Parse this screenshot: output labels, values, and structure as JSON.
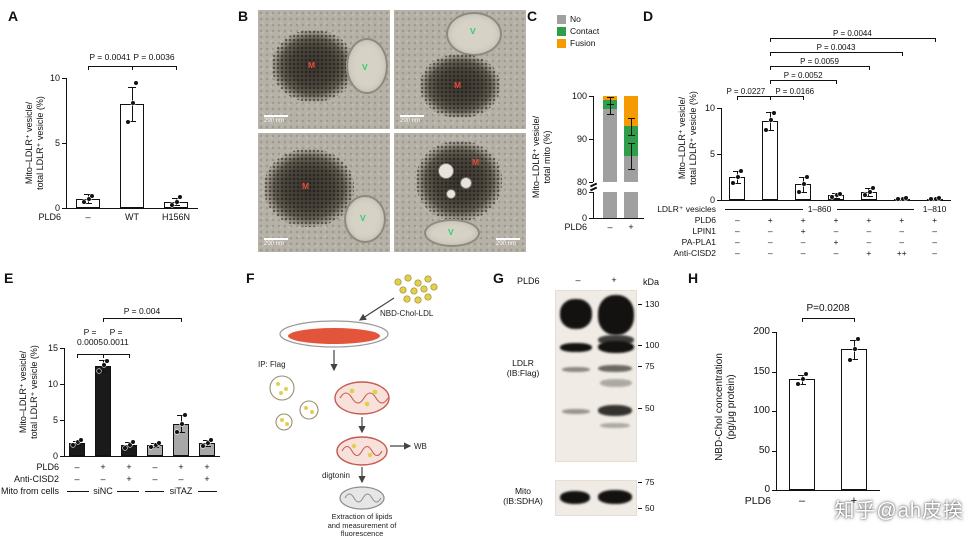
{
  "figure": {
    "watermark": "知乎@ah皮挨",
    "panels": {
      "A": {
        "label": "A",
        "chart_data": {
          "type": "bar",
          "ylabel_lines": [
            "Mito–LDLR⁺ vesicle/",
            "total LDLR⁺ vesicle (%)"
          ],
          "ylim": [
            0,
            10
          ],
          "yticks": [
            0,
            5,
            10
          ],
          "x_rows": [
            {
              "label": "PLD6",
              "cells": [
                "–",
                "WT",
                "H156N"
              ]
            }
          ],
          "values": [
            0.7,
            8.0,
            0.5
          ],
          "errors": [
            0.35,
            1.3,
            0.3
          ],
          "points": [
            [
              0.45,
              0.7,
              0.95
            ],
            [
              6.6,
              8.1,
              9.6
            ],
            [
              0.2,
              0.5,
              0.85
            ]
          ],
          "bar_colors": [
            "#ffffff",
            "#ffffff",
            "#ffffff"
          ],
          "brackets": [
            {
              "from": 0,
              "to": 1,
              "label": "P = 0.0041"
            },
            {
              "from": 1,
              "to": 2,
              "label": "P = 0.0036"
            }
          ]
        }
      },
      "B": {
        "label": "B",
        "tiles": [
          {
            "m": "M",
            "v": "V",
            "scale": "200 nm"
          },
          {
            "m": "M",
            "v": "V",
            "scale": "200 nm"
          },
          {
            "m": "M",
            "v": "V",
            "scale": "200 nm"
          },
          {
            "m": "M",
            "v": "V",
            "scale": "200 nm"
          }
        ]
      },
      "C": {
        "label": "C",
        "chart_data": {
          "type": "stacked-bar",
          "legend": [
            {
              "label": "No",
              "color": "#a0a0a0"
            },
            {
              "label": "Contact",
              "color": "#2f9e4a"
            },
            {
              "label": "Fusion",
              "color": "#f59b00"
            }
          ],
          "ylabel_lines": [
            "Mito–LDLR⁺ vesicle/",
            "total mito (%)"
          ],
          "x_label": "PLD6",
          "categories": [
            "–",
            "+"
          ],
          "axis_break": true,
          "yticks_top": [
            100,
            90,
            80
          ],
          "yticks_bottom": [
            80,
            0
          ],
          "stacks": {
            "order_top_down": [
              "Fusion",
              "Contact",
              "No"
            ],
            "Fusion": [
              1,
              7
            ],
            "Contact": [
              2,
              7
            ],
            "No": [
              97,
              86
            ]
          },
          "errors": [
            {
              "bar": 0,
              "value": 99,
              "err": 0.8
            },
            {
              "bar": 0,
              "value": 97,
              "err": 1.2
            },
            {
              "bar": 1,
              "value": 93,
              "err": 2
            },
            {
              "bar": 1,
              "value": 86,
              "err": 3
            }
          ]
        }
      },
      "D": {
        "label": "D",
        "chart_data": {
          "type": "bar",
          "ylabel_lines": [
            "Mito–LDLR⁺ vesicle/",
            "total LDLR⁺ vesicle (%)"
          ],
          "ylim": [
            0,
            10
          ],
          "yticks": [
            0,
            5,
            10
          ],
          "values": [
            2.5,
            8.6,
            1.7,
            0.5,
            0.9,
            0.15,
            0.15
          ],
          "errors": [
            0.7,
            1.0,
            0.8,
            0.25,
            0.45,
            0.1,
            0.1
          ],
          "points": [
            [
              1.8,
              2.5,
              3.2
            ],
            [
              7.6,
              8.7,
              9.5
            ],
            [
              0.9,
              1.7,
              2.5
            ],
            [
              0.3,
              0.5,
              0.7
            ],
            [
              0.5,
              0.9,
              1.3
            ],
            [
              0.1,
              0.15,
              0.2
            ],
            [
              0.1,
              0.15,
              0.2
            ]
          ],
          "bar_colors": [
            "#ffffff",
            "#ffffff",
            "#ffffff",
            "#ffffff",
            "#ffffff",
            "#ffffff",
            "#ffffff"
          ],
          "brackets": [
            {
              "from": 0,
              "to": 1,
              "label": "P = 0.0227"
            },
            {
              "from": 1,
              "to": 2,
              "label": "P = 0.0166"
            },
            {
              "from": 1,
              "to": 3,
              "label": "P = 0.0052"
            },
            {
              "from": 1,
              "to": 4,
              "label": "P = 0.0059"
            },
            {
              "from": 1,
              "to": 5,
              "label": "P = 0.0043"
            },
            {
              "from": 1,
              "to": 6,
              "label": "P = 0.0044"
            }
          ],
          "x_rows": [
            {
              "label": "LDLR⁺ vesicles",
              "groups": [
                {
                  "label": "1–860",
                  "from": 0,
                  "to": 5
                },
                {
                  "label": "1–810",
                  "from": 6,
                  "to": 6
                }
              ]
            },
            {
              "label": "PLD6",
              "cells": [
                "–",
                "+",
                "+",
                "+",
                "+",
                "+",
                "+"
              ]
            },
            {
              "label": "LPIN1",
              "cells": [
                "–",
                "–",
                "+",
                "–",
                "–",
                "–",
                "–"
              ]
            },
            {
              "label": "PA-PLA1",
              "cells": [
                "–",
                "–",
                "–",
                "+",
                "–",
                "–",
                "–"
              ]
            },
            {
              "label": "Anti-CISD2",
              "cells": [
                "–",
                "–",
                "–",
                "–",
                "+",
                "++",
                "–"
              ]
            }
          ]
        }
      },
      "E": {
        "label": "E",
        "chart_data": {
          "type": "bar",
          "ylabel_lines": [
            "Mito–LDLR⁺ vesicle/",
            "total LDLR⁺ vesicle (%)"
          ],
          "ylim": [
            0,
            15
          ],
          "yticks": [
            0,
            5,
            10,
            15
          ],
          "values": [
            1.8,
            12.5,
            1.5,
            1.5,
            4.5,
            1.8
          ],
          "errors": [
            0.3,
            0.8,
            0.5,
            0.3,
            1.2,
            0.4
          ],
          "points": [
            [
              1.5,
              1.9,
              2.2
            ],
            [
              11.8,
              12.6,
              13.2
            ],
            [
              1.1,
              1.5,
              2.0
            ],
            [
              1.2,
              1.5,
              1.8
            ],
            [
              3.3,
              4.4,
              5.7
            ],
            [
              1.4,
              1.8,
              2.2
            ]
          ],
          "bar_colors": [
            "#1a1a1a",
            "#1a1a1a",
            "#1a1a1a",
            "#a8a8a8",
            "#a8a8a8",
            "#a8a8a8"
          ],
          "brackets": [
            {
              "from": 0,
              "to": 1,
              "label": "P =\n0.0005"
            },
            {
              "from": 1,
              "to": 2,
              "label": "P =\n0.0011"
            },
            {
              "from": 1,
              "to": 4,
              "label": "P = 0.004"
            }
          ],
          "x_rows": [
            {
              "label": "PLD6",
              "cells": [
                "–",
                "+",
                "+",
                "–",
                "+",
                "+"
              ]
            },
            {
              "label": "Anti-CISD2",
              "cells": [
                "–",
                "–",
                "+",
                "–",
                "–",
                "+"
              ]
            },
            {
              "label": "Mito from cells",
              "groups": [
                {
                  "label": "siNC",
                  "from": 0,
                  "to": 2
                },
                {
                  "label": "siTAZ",
                  "from": 3,
                  "to": 5
                }
              ]
            }
          ]
        }
      },
      "F": {
        "label": "F",
        "diagram": {
          "ldl_label": "NBD-Chol-LDL",
          "ip_label": "IP: Flag",
          "wb_label": "WB",
          "digitonin_label": "digtonin",
          "bottom_text_lines": [
            "Extraction of lipids",
            "and measurement of",
            "fluorescence"
          ]
        }
      },
      "G": {
        "label": "G",
        "blot": {
          "condition_label": "PLD6",
          "lanes": [
            "–",
            "+"
          ],
          "unit": "kDa",
          "markers_top": [
            "130",
            "100",
            "75",
            "50"
          ],
          "markers_bottom": [
            "75",
            "50"
          ],
          "blot1_label_lines": [
            "LDLR",
            "(IB:Flag)"
          ],
          "blot2_label_lines": [
            "Mito",
            "(IB:SDHA)"
          ]
        }
      },
      "H": {
        "label": "H",
        "chart_data": {
          "type": "bar",
          "ylabel_lines": [
            "NBD-Chol concentration",
            "(pg/μg protein)"
          ],
          "ylim": [
            0,
            200
          ],
          "yticks": [
            0,
            50,
            100,
            150,
            200
          ],
          "values": [
            140,
            178
          ],
          "errors": [
            6,
            12
          ],
          "points": [
            [
              134,
              140,
              147
            ],
            [
              165,
              178,
              191
            ]
          ],
          "bar_colors": [
            "#ffffff",
            "#ffffff"
          ],
          "brackets": [
            {
              "from": 0,
              "to": 1,
              "label": "P=0.0208"
            }
          ],
          "x_rows": [
            {
              "label": "PLD6",
              "cells": [
                "–",
                "+"
              ]
            }
          ]
        }
      }
    }
  }
}
